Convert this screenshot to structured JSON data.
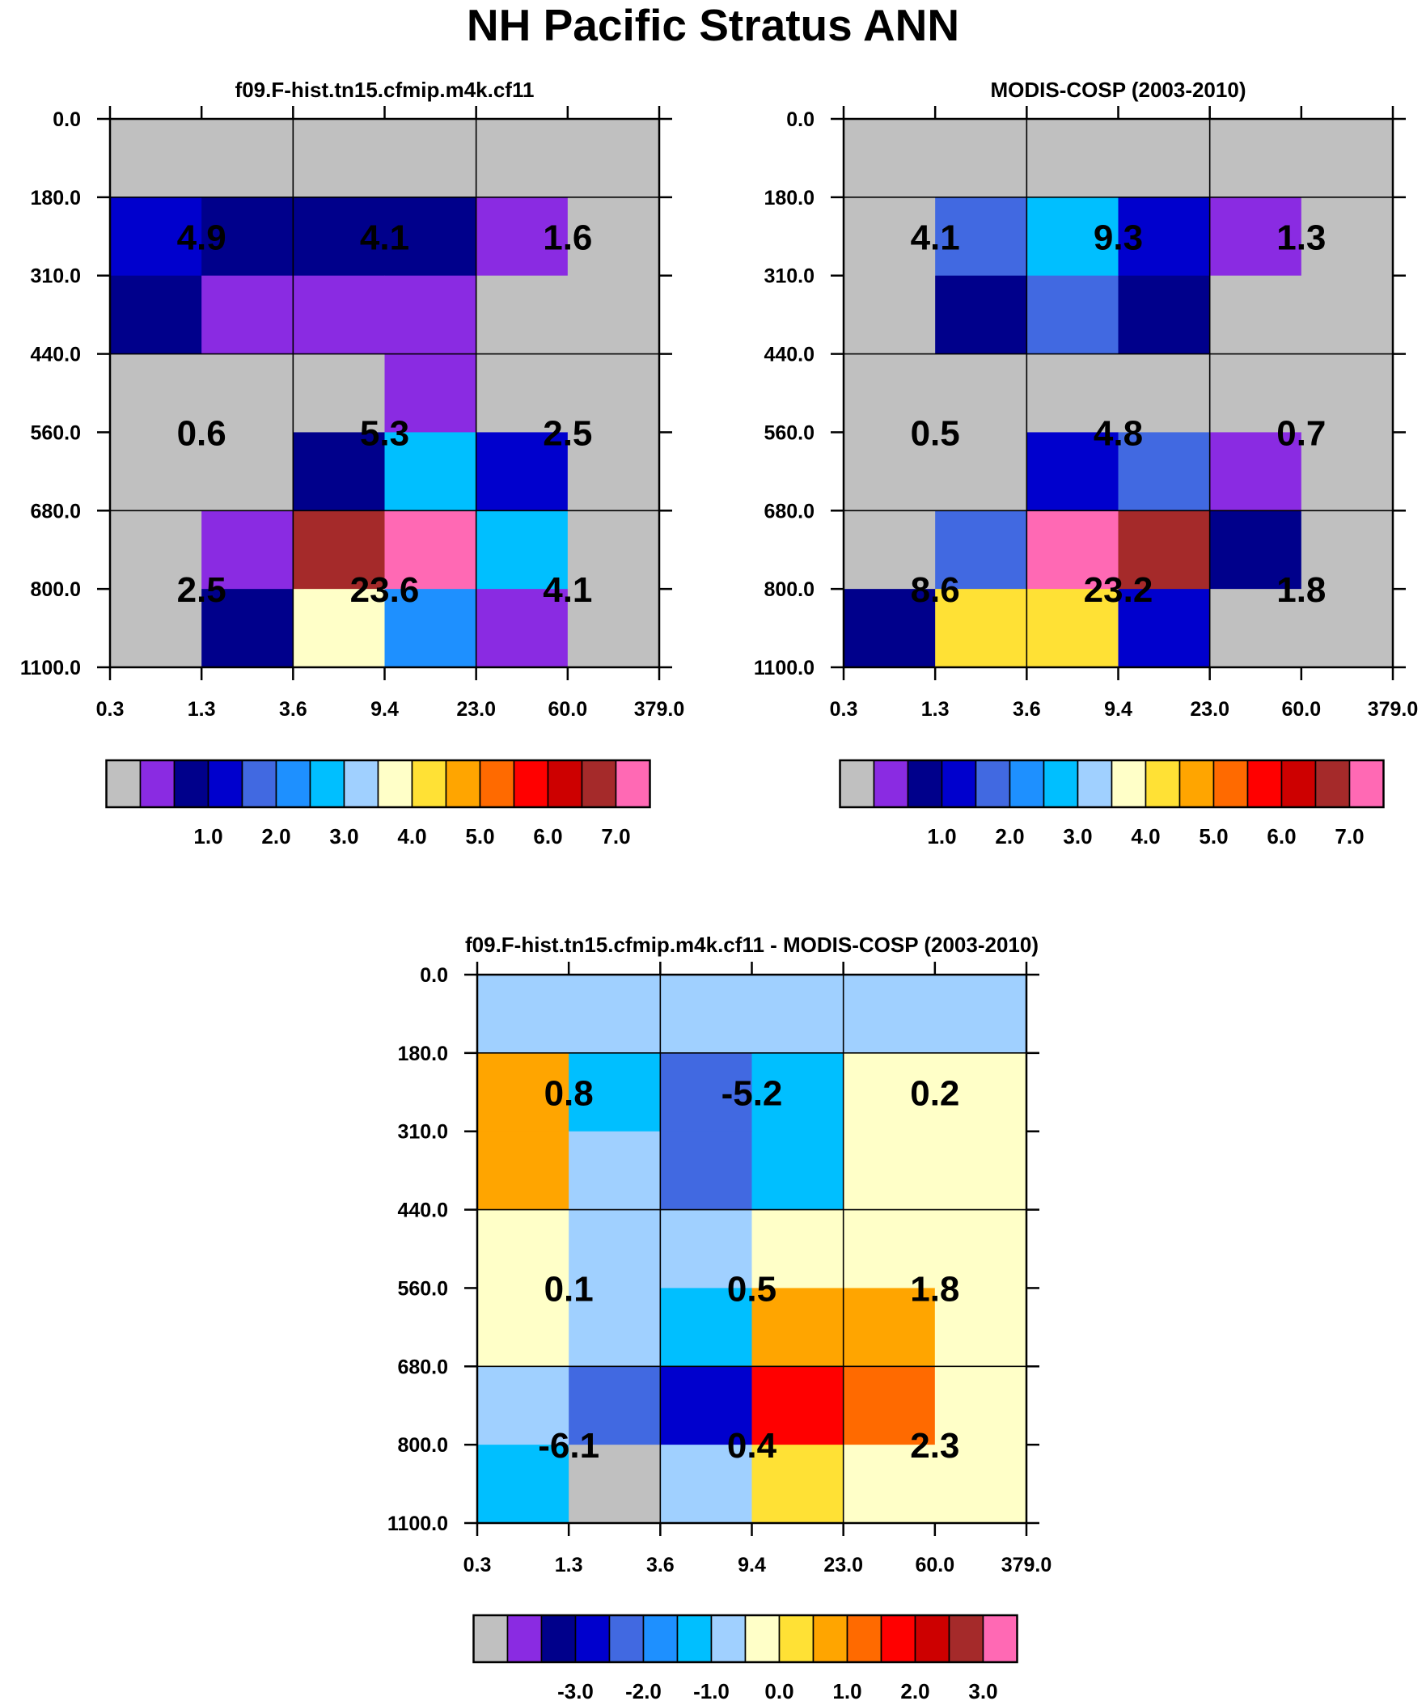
{
  "title": "NH Pacific Stratus ANN",
  "colors": {
    "palette": [
      "#c0c0c0",
      "#8a2be2",
      "#00008b",
      "#0000cd",
      "#4169e1",
      "#1e90ff",
      "#00bfff",
      "#a0d0ff",
      "#ffffc8",
      "#ffe135",
      "#ffa500",
      "#ff6a00",
      "#ff0000",
      "#cd0000",
      "#a52a2a",
      "#ff69b4"
    ],
    "text": "#000000",
    "grid": "#000000"
  },
  "chart_data": [
    {
      "type": "heatmap",
      "panel": "model",
      "title": "f09.F-hist.tn15.cfmip.m4k.cf11",
      "x_ticks": [
        "0.3",
        "1.3",
        "3.6",
        "9.4",
        "23.0",
        "60.0",
        "379.0"
      ],
      "y_ticks": [
        "0.0",
        "180.0",
        "310.0",
        "440.0",
        "560.0",
        "680.0",
        "800.0",
        "1100.0"
      ],
      "xlabel": "",
      "ylabel": "",
      "cells": [
        [
          0,
          0,
          0,
          0,
          0,
          0
        ],
        [
          3,
          2,
          2,
          2,
          1,
          0
        ],
        [
          2,
          1,
          1,
          1,
          0,
          0
        ],
        [
          0,
          0,
          0,
          1,
          0,
          0
        ],
        [
          0,
          0,
          2,
          6,
          3,
          0
        ],
        [
          0,
          1,
          14,
          15,
          6,
          0
        ],
        [
          0,
          2,
          8,
          5,
          1,
          0
        ]
      ],
      "group_values": [
        [
          "4.9",
          "4.1",
          "1.6"
        ],
        [
          "0.6",
          "5.3",
          "2.5"
        ],
        [
          "2.5",
          "23.6",
          "4.1"
        ]
      ],
      "colorbar": {
        "labels": [
          "1.0",
          "2.0",
          "3.0",
          "4.0",
          "5.0",
          "6.0",
          "7.0"
        ]
      }
    },
    {
      "type": "heatmap",
      "panel": "obs",
      "title": "MODIS-COSP (2003-2010)",
      "x_ticks": [
        "0.3",
        "1.3",
        "3.6",
        "9.4",
        "23.0",
        "60.0",
        "379.0"
      ],
      "y_ticks": [
        "0.0",
        "180.0",
        "310.0",
        "440.0",
        "560.0",
        "680.0",
        "800.0",
        "1100.0"
      ],
      "xlabel": "",
      "ylabel": "",
      "cells": [
        [
          0,
          0,
          0,
          0,
          0,
          0
        ],
        [
          0,
          4,
          6,
          3,
          1,
          0
        ],
        [
          0,
          2,
          4,
          2,
          0,
          0
        ],
        [
          0,
          0,
          0,
          0,
          0,
          0
        ],
        [
          0,
          0,
          3,
          4,
          1,
          0
        ],
        [
          0,
          4,
          15,
          14,
          2,
          0
        ],
        [
          2,
          9,
          9,
          3,
          0,
          0
        ]
      ],
      "group_values": [
        [
          "4.1",
          "9.3",
          "1.3"
        ],
        [
          "0.5",
          "4.8",
          "0.7"
        ],
        [
          "8.6",
          "23.2",
          "1.8"
        ]
      ],
      "colorbar": {
        "labels": [
          "1.0",
          "2.0",
          "3.0",
          "4.0",
          "5.0",
          "6.0",
          "7.0"
        ]
      }
    },
    {
      "type": "heatmap",
      "panel": "diff",
      "title": "f09.F-hist.tn15.cfmip.m4k.cf11 - MODIS-COSP (2003-2010)",
      "x_ticks": [
        "0.3",
        "1.3",
        "3.6",
        "9.4",
        "23.0",
        "60.0",
        "379.0"
      ],
      "y_ticks": [
        "0.0",
        "180.0",
        "310.0",
        "440.0",
        "560.0",
        "680.0",
        "800.0",
        "1100.0"
      ],
      "xlabel": "",
      "ylabel": "",
      "cells": [
        [
          7,
          7,
          7,
          7,
          7,
          7
        ],
        [
          10,
          6,
          4,
          6,
          8,
          8
        ],
        [
          10,
          7,
          4,
          6,
          8,
          8
        ],
        [
          8,
          7,
          7,
          8,
          8,
          8
        ],
        [
          8,
          7,
          6,
          10,
          10,
          8
        ],
        [
          7,
          4,
          3,
          12,
          11,
          8
        ],
        [
          6,
          0,
          7,
          9,
          8,
          8
        ]
      ],
      "group_values": [
        [
          "0.8",
          "-5.2",
          "0.2"
        ],
        [
          "0.1",
          "0.5",
          "1.8"
        ],
        [
          "-6.1",
          "0.4",
          "2.3"
        ]
      ],
      "colorbar": {
        "labels": [
          "-3.0",
          "-2.0",
          "-1.0",
          "0.0",
          "1.0",
          "2.0",
          "3.0"
        ]
      }
    }
  ]
}
